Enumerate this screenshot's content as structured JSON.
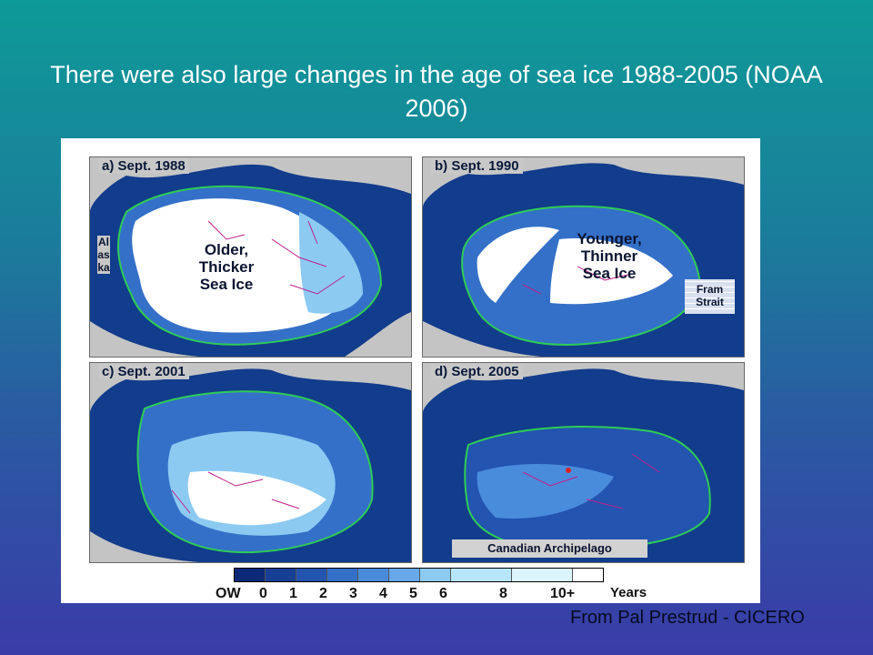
{
  "title": "There were also large changes in the age of sea ice 1988-2005 (NOAA 2006)",
  "credit": "From Pal Prestrud - CICERO",
  "panels": [
    {
      "label": "a) Sept. 1988",
      "annotation": "Older,\nThicker\nSea Ice",
      "side_label": "Alaska"
    },
    {
      "label": "b) Sept. 1990",
      "annotation": "Younger,\nThinner\nSea Ice",
      "inset_label": "Fram\nStrait"
    },
    {
      "label": "c) Sept. 2001"
    },
    {
      "label": "d) Sept. 2005",
      "inset_label": "Canadian Archipelago"
    }
  ],
  "legend": {
    "unit": "Years",
    "ticks": [
      "OW",
      "0",
      "1",
      "2",
      "3",
      "4",
      "5",
      "6",
      "8",
      "10+"
    ],
    "colors": [
      "#0c2a78",
      "#173f95",
      "#2354b0",
      "#3470c8",
      "#4a8cdc",
      "#68a8ea",
      "#8ccaf2",
      "#b6e6f8",
      "#dcf4fb",
      "#ffffff"
    ]
  },
  "colors": {
    "open_water": "#123c8c",
    "land": "#c4c4c4",
    "ice_edge": "#2ecc55",
    "drift_tracks": "#c0208c"
  }
}
